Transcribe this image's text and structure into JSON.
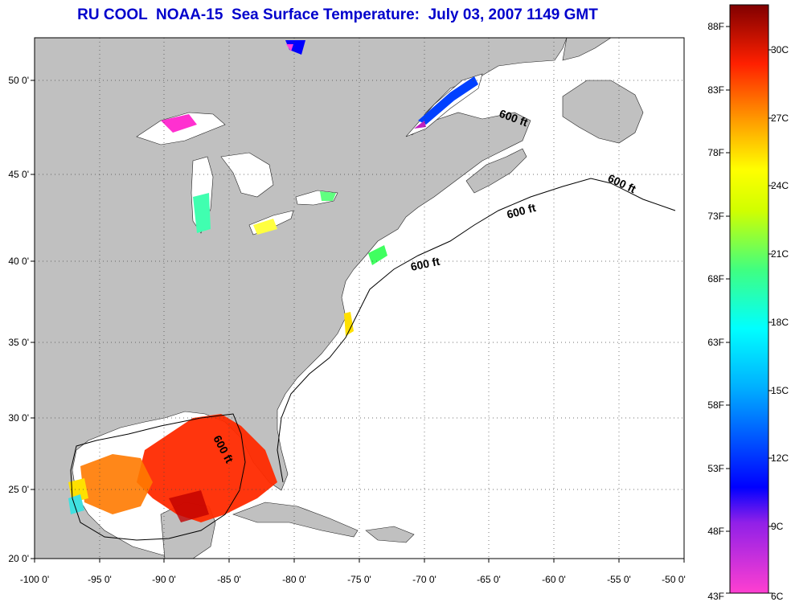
{
  "title": "RU COOL  NOAA-15  Sea Surface Temperature:  July 03, 2007 1149 GMT",
  "map": {
    "lon_ticks": [
      "-100 0'",
      "-95 0'",
      "-90 0'",
      "-85 0'",
      "-80 0'",
      "-75 0'",
      "-70 0'",
      "-65 0'",
      "-60 0'",
      "-55 0'",
      "-50 0'"
    ],
    "lat_ticks": [
      "50 0'",
      "45 0'",
      "40 0'",
      "35 0'",
      "30 0'",
      "25 0'",
      "20 0'"
    ],
    "contour_labels": [
      "600 ft",
      "600 ft",
      "600 ft",
      "600 ft",
      "600 ft"
    ],
    "colors": {
      "land": "#c0c0c0",
      "ocean": "#ffffff"
    }
  },
  "colorbar": {
    "fahrenheit": [
      "88F",
      "83F",
      "78F",
      "73F",
      "68F",
      "63F",
      "58F",
      "53F",
      "48F",
      "43F"
    ],
    "celsius": [
      "30C",
      "27C",
      "24C",
      "21C",
      "18C",
      "15C",
      "12C",
      "9C",
      "6C"
    ]
  }
}
